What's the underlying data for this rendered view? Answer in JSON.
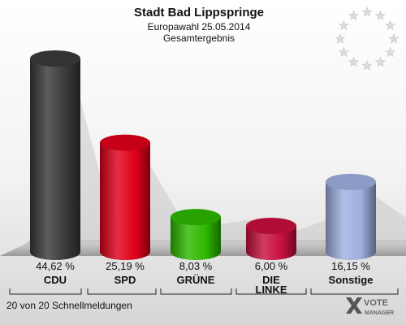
{
  "chart_data": {
    "type": "bar",
    "title": "Stadt Bad Lippspringe",
    "subtitle": "Europawahl 25.05.2014",
    "subtitle2": "Gesamtergebnis",
    "categories": [
      "CDU",
      "SPD",
      "GRÜNE",
      "DIE LINKE",
      "Sonstige"
    ],
    "category_lines": [
      [
        "CDU"
      ],
      [
        "SPD"
      ],
      [
        "GRÜNE"
      ],
      [
        "DIE",
        "LINKE"
      ],
      [
        "Sonstige"
      ]
    ],
    "values": [
      44.62,
      25.19,
      8.03,
      6.0,
      16.15
    ],
    "value_labels": [
      "44,62 %",
      "25,19 %",
      "8,03 %",
      "6,00 %",
      "16,15 %"
    ],
    "colors": [
      "#3a3a3a",
      "#e0001a",
      "#2eb800",
      "#c8103e",
      "#9fb0e0"
    ],
    "ylim": [
      0,
      45
    ]
  },
  "footer": "20 von 20 Schnellmeldungen",
  "logo": {
    "line1": "VOTE",
    "line2": "MANAGER"
  }
}
